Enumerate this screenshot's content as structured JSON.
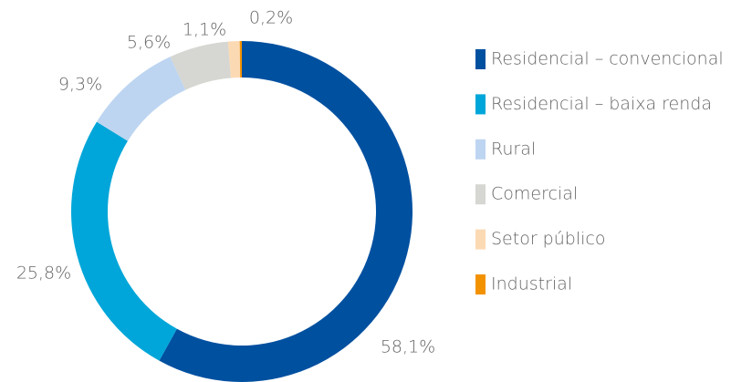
{
  "chart_data": {
    "type": "donut",
    "categories": [
      "Residencial – convencional",
      "Residencial – baixa renda",
      "Rural",
      "Comercial",
      "Setor público",
      "Industrial"
    ],
    "values": [
      58.1,
      25.8,
      9.3,
      5.6,
      1.1,
      0.2
    ],
    "value_labels": [
      "58,1%",
      "25,8%",
      "9,3%",
      "5,6%",
      "1,1%",
      "0,2%"
    ],
    "colors": [
      "#0050a0",
      "#00a6d9",
      "#bdd5f1",
      "#d6d6d2",
      "#fbdab3",
      "#f39200"
    ],
    "legend": "right"
  }
}
